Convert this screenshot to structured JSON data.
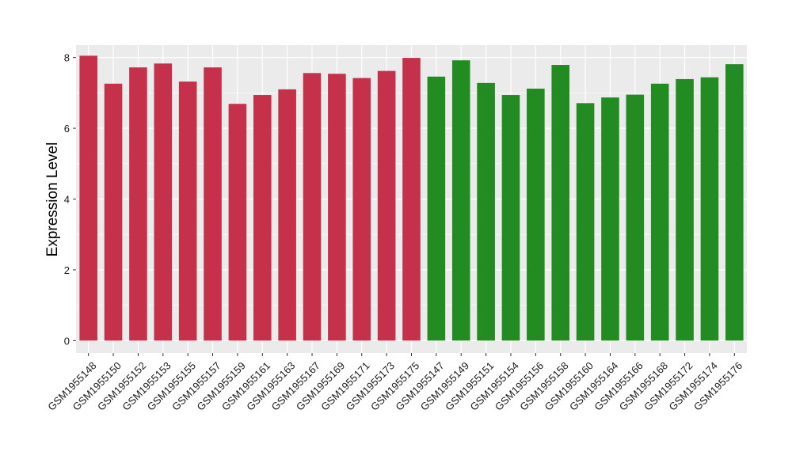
{
  "chart_data": {
    "type": "bar",
    "ylabel": "Expression Level",
    "ylim": [
      -0.35,
      8.35
    ],
    "yticks": [
      0,
      2,
      4,
      6,
      8
    ],
    "grid": true,
    "legend": "none",
    "background_color": "#ebebeb",
    "grid_color": "#ffffff",
    "categories": [
      "GSM1955148",
      "GSM1955150",
      "GSM1955152",
      "GSM1955153",
      "GSM1955155",
      "GSM1955157",
      "GSM1955159",
      "GSM1955161",
      "GSM1955163",
      "GSM1955167",
      "GSM1955169",
      "GSM1955171",
      "GSM1955173",
      "GSM1955175",
      "GSM1955147",
      "GSM1955149",
      "GSM1955151",
      "GSM1955154",
      "GSM1955156",
      "GSM1955158",
      "GSM1955160",
      "GSM1955164",
      "GSM1955166",
      "GSM1955168",
      "GSM1955172",
      "GSM1955174",
      "GSM1955176"
    ],
    "values": [
      8.05,
      7.26,
      7.72,
      7.83,
      7.32,
      7.72,
      6.69,
      6.94,
      7.1,
      7.56,
      7.54,
      7.42,
      7.62,
      7.99,
      7.46,
      7.92,
      7.28,
      6.94,
      7.12,
      7.79,
      6.71,
      6.87,
      6.95,
      7.26,
      7.39,
      7.44,
      7.81
    ],
    "groups": [
      "red",
      "red",
      "red",
      "red",
      "red",
      "red",
      "red",
      "red",
      "red",
      "red",
      "red",
      "red",
      "red",
      "red",
      "green",
      "green",
      "green",
      "green",
      "green",
      "green",
      "green",
      "green",
      "green",
      "green",
      "green",
      "green",
      "green"
    ],
    "colors": {
      "red": "#c5314a",
      "green": "#228b22"
    }
  }
}
